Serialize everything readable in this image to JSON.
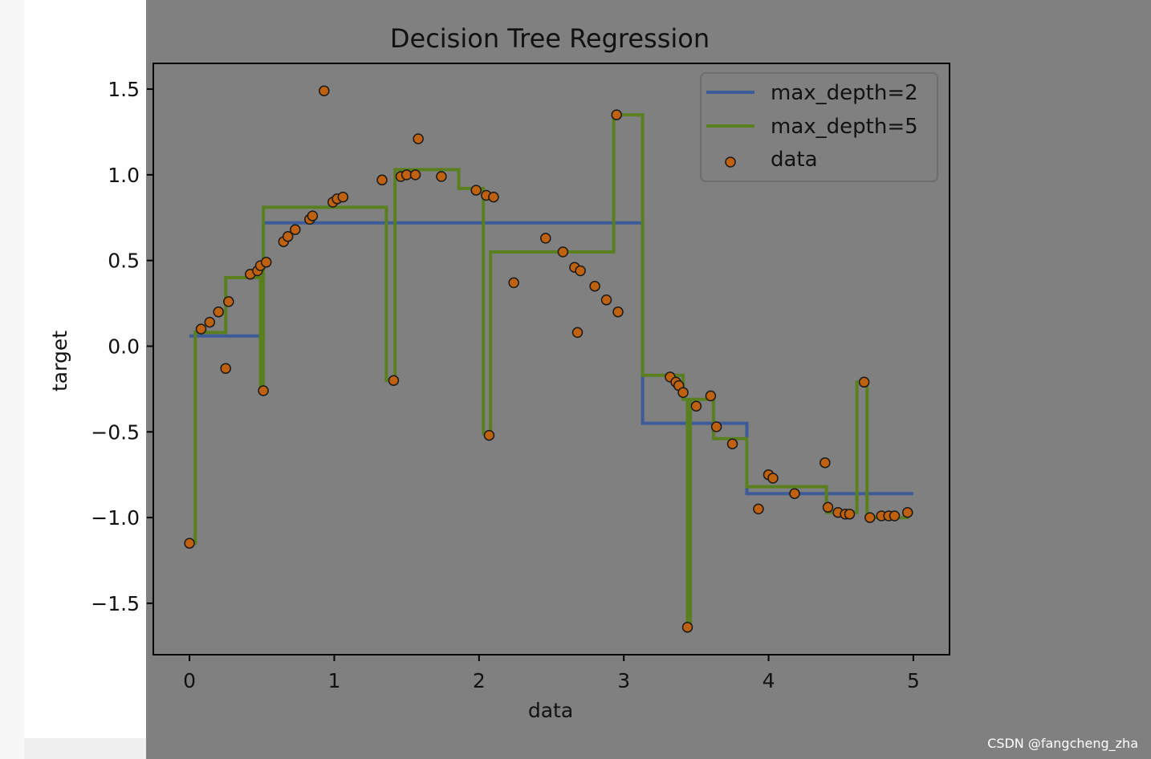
{
  "chart_data": {
    "type": "scatter",
    "title": "Decision Tree Regression",
    "xlabel": "data",
    "ylabel": "target",
    "xlim": [
      -0.25,
      5.25
    ],
    "ylim": [
      -1.8,
      1.65
    ],
    "x_ticks": [
      0,
      1,
      2,
      3,
      4,
      5
    ],
    "x_tick_labels": [
      "0",
      "1",
      "2",
      "3",
      "4",
      "5"
    ],
    "y_ticks": [
      1.5,
      1.0,
      0.5,
      0.0,
      -0.5,
      -1.0,
      -1.5
    ],
    "y_tick_labels": [
      "1.5",
      "1.0",
      "0.5",
      "0.0",
      "−0.5",
      "−1.0",
      "−1.5"
    ],
    "grid": false,
    "legend_position": "top-right",
    "legend": [
      "max_depth=2",
      "max_depth=5",
      "data"
    ],
    "series": [
      {
        "name": "max_depth=2",
        "kind": "step-line",
        "color": "#3d5a99",
        "x": [
          0.0,
          0.005,
          0.01,
          0.015,
          0.02,
          0.025,
          0.03,
          0.035,
          0.04,
          0.045,
          0.05,
          0.055,
          0.06,
          0.065,
          0.07,
          0.075,
          0.08,
          0.085,
          0.09,
          0.095,
          0.1,
          0.105,
          0.11,
          0.115,
          0.12,
          0.125,
          0.13,
          0.135,
          0.14,
          0.145,
          0.15,
          0.155,
          0.16,
          0.165,
          0.17,
          0.175,
          0.18,
          0.185,
          0.19,
          0.195,
          0.2,
          0.205,
          0.21,
          0.215,
          0.22,
          0.225,
          0.23,
          0.235,
          0.24,
          0.245,
          0.25,
          0.255,
          0.26,
          0.265,
          0.27,
          0.275,
          0.28,
          0.285,
          0.29,
          0.295,
          0.3,
          0.305,
          0.31,
          0.315,
          0.32,
          0.325,
          0.33,
          0.335,
          0.34,
          0.345,
          0.35,
          0.355,
          0.36,
          0.365,
          0.37,
          0.375,
          0.38,
          0.385,
          0.39,
          0.395,
          0.4,
          0.405,
          0.41,
          0.415,
          0.42,
          0.425,
          0.43,
          0.435,
          0.44,
          0.445,
          0.45,
          0.455,
          0.46,
          0.465,
          0.47,
          0.475,
          0.48,
          0.485,
          0.49,
          0.495,
          0.5,
          0.505,
          0.51,
          0.515,
          0.52,
          0.525,
          0.53,
          0.535,
          0.54,
          0.545,
          0.55,
          0.555,
          0.56,
          0.565,
          0.57,
          0.575,
          0.58,
          0.585,
          0.59,
          0.595,
          0.6,
          0.605,
          0.61,
          0.615,
          0.62,
          0.625,
          0.63,
          0.635,
          0.64,
          0.645,
          0.65,
          0.655,
          0.66,
          0.665,
          0.67,
          0.675,
          0.68,
          0.685,
          0.69,
          0.695,
          0.7,
          0.705,
          0.71,
          0.715,
          0.72,
          0.725,
          0.73,
          0.735,
          0.74,
          0.745,
          0.75,
          0.755,
          0.76,
          0.765,
          0.77,
          0.775,
          0.78,
          0.785,
          0.79,
          0.795,
          0.8,
          0.805,
          0.81,
          0.815,
          0.82,
          0.825,
          0.83,
          0.835,
          0.84,
          0.845,
          0.85,
          0.855,
          0.86,
          0.865,
          0.87,
          0.875,
          0.88,
          0.885,
          0.89,
          0.895,
          0.9,
          0.905,
          0.91,
          0.915,
          0.92,
          0.925,
          0.93,
          0.935,
          0.94,
          0.945,
          0.95,
          0.955,
          0.96,
          0.965,
          0.97,
          0.975,
          0.98,
          0.985,
          0.99,
          0.995,
          1.0
        ],
        "y_segments": [
          {
            "from": 0.0,
            "to": 0.51,
            "y": 0.06
          },
          {
            "from": 0.51,
            "to": 3.13,
            "y": 0.72
          },
          {
            "from": 3.13,
            "to": 3.85,
            "y": -0.45
          },
          {
            "from": 3.85,
            "to": 5.0,
            "y": -0.86
          }
        ]
      },
      {
        "name": "max_depth=5",
        "kind": "step-line",
        "color": "#5a7f1e",
        "y_segments": [
          {
            "from": 0.0,
            "to": 0.04,
            "y": -1.15
          },
          {
            "from": 0.04,
            "to": 0.25,
            "y": 0.08
          },
          {
            "from": 0.25,
            "to": 0.49,
            "y": 0.4
          },
          {
            "from": 0.49,
            "to": 0.51,
            "y": -0.27
          },
          {
            "from": 0.51,
            "to": 1.36,
            "y": 0.81
          },
          {
            "from": 1.36,
            "to": 1.42,
            "y": -0.2
          },
          {
            "from": 1.42,
            "to": 1.86,
            "y": 1.03
          },
          {
            "from": 1.86,
            "to": 2.03,
            "y": 0.92
          },
          {
            "from": 2.03,
            "to": 2.08,
            "y": -0.51
          },
          {
            "from": 2.08,
            "to": 2.93,
            "y": 0.55
          },
          {
            "from": 2.93,
            "to": 3.13,
            "y": 1.35
          },
          {
            "from": 3.13,
            "to": 3.41,
            "y": -0.17
          },
          {
            "from": 3.41,
            "to": 3.44,
            "y": -0.31
          },
          {
            "from": 3.44,
            "to": 3.46,
            "y": -1.64
          },
          {
            "from": 3.46,
            "to": 3.62,
            "y": -0.31
          },
          {
            "from": 3.62,
            "to": 3.85,
            "y": -0.54
          },
          {
            "from": 3.85,
            "to": 4.4,
            "y": -0.82
          },
          {
            "from": 4.4,
            "to": 4.61,
            "y": -0.97
          },
          {
            "from": 4.61,
            "to": 4.68,
            "y": -0.21
          },
          {
            "from": 4.68,
            "to": 4.96,
            "y": -1.0
          },
          {
            "from": 4.96,
            "to": 5.0,
            "y": -0.97
          }
        ]
      },
      {
        "name": "data",
        "kind": "scatter",
        "color": "#c0610f",
        "edge_color": "#1a1a1a",
        "x": [
          0.0,
          0.08,
          0.14,
          0.2,
          0.25,
          0.27,
          0.42,
          0.47,
          0.49,
          0.51,
          0.53,
          0.65,
          0.68,
          0.73,
          0.83,
          0.85,
          0.93,
          0.99,
          1.02,
          1.06,
          1.33,
          1.41,
          1.46,
          1.5,
          1.56,
          1.58,
          1.74,
          1.98,
          2.05,
          2.07,
          2.1,
          2.24,
          2.46,
          2.58,
          2.66,
          2.68,
          2.7,
          2.8,
          2.88,
          2.96,
          2.95,
          3.32,
          3.36,
          3.38,
          3.41,
          3.44,
          3.5,
          3.6,
          3.64,
          3.75,
          3.93,
          4.0,
          4.03,
          4.18,
          4.39,
          4.41,
          4.48,
          4.53,
          4.56,
          4.66,
          4.7,
          4.78,
          4.83,
          4.87,
          4.96
        ],
        "y": [
          -1.15,
          0.1,
          0.14,
          0.2,
          -0.13,
          0.26,
          0.42,
          0.44,
          0.47,
          -0.26,
          0.49,
          0.61,
          0.64,
          0.68,
          0.74,
          0.76,
          1.49,
          0.84,
          0.86,
          0.87,
          0.97,
          -0.2,
          0.99,
          1.0,
          1.0,
          1.21,
          0.99,
          0.91,
          0.88,
          -0.52,
          0.87,
          0.37,
          0.63,
          0.55,
          0.46,
          0.08,
          0.44,
          0.35,
          0.27,
          0.2,
          1.35,
          -0.18,
          -0.21,
          -0.23,
          -0.27,
          -1.64,
          -0.35,
          -0.29,
          -0.47,
          -0.57,
          -0.95,
          -0.75,
          -0.77,
          -0.86,
          -0.68,
          -0.94,
          -0.97,
          -0.98,
          -0.98,
          -0.21,
          -1.0,
          -0.99,
          -0.99,
          -0.99,
          -0.97
        ]
      }
    ]
  },
  "watermark": "CSDN @fangcheng_zha"
}
